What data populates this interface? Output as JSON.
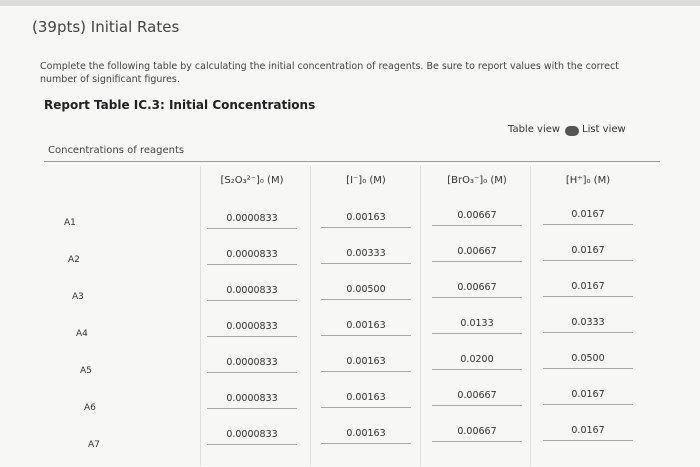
{
  "header": {
    "title": "(39pts) Initial Rates",
    "instructions": "Complete the following table by calculating the initial concentration of reagents. Be sure to report values with the correct number of significant figures."
  },
  "table": {
    "title": "Report Table IC.3: Initial Concentrations",
    "views": [
      "Table view",
      "List view"
    ],
    "caption": "Concentrations of reagents",
    "columns": [
      "[S₂O₃²⁻]₀ (M)",
      "[I⁻]₀ (M)",
      "[BrO₃⁻]₀ (M)",
      "[H⁺]₀ (M)"
    ],
    "rows": [
      {
        "label": "A1",
        "cells": [
          "0.0000833",
          "0.00163",
          "0.00667",
          "0.0167"
        ]
      },
      {
        "label": "A2",
        "cells": [
          "0.0000833",
          "0.00333",
          "0.00667",
          "0.0167"
        ]
      },
      {
        "label": "A3",
        "cells": [
          "0.0000833",
          "0.00500",
          "0.00667",
          "0.0167"
        ]
      },
      {
        "label": "A4",
        "cells": [
          "0.0000833",
          "0.00163",
          "0.0133",
          "0.0333"
        ]
      },
      {
        "label": "A5",
        "cells": [
          "0.0000833",
          "0.00163",
          "0.0200",
          "0.0500"
        ]
      },
      {
        "label": "A6",
        "cells": [
          "0.0000833",
          "0.00163",
          "0.00667",
          "0.0167"
        ]
      },
      {
        "label": "A7",
        "cells": [
          "0.0000833",
          "0.00163",
          "0.00667",
          "0.0167"
        ]
      }
    ]
  }
}
